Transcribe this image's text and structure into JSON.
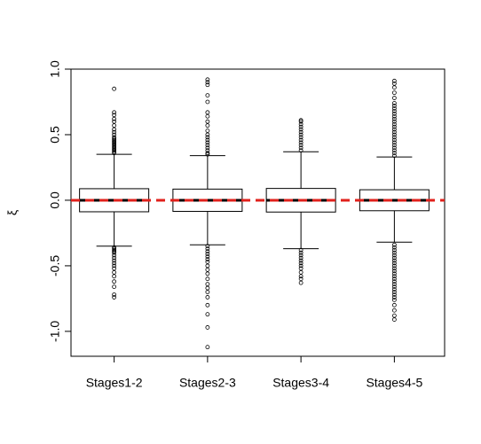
{
  "chart_data": {
    "type": "box",
    "y_label": "ξ",
    "categories": [
      "Stages1-2",
      "Stages2-3",
      "Stages3-4",
      "Stages4-5"
    ],
    "ylim": [
      -1.19,
      1.0
    ],
    "yticks": [
      {
        "value": -1.0,
        "label": "-1.0"
      },
      -0.5,
      {
        "value": 0.0,
        "label": "0.0"
      },
      0.5,
      {
        "value": 1.0,
        "label": "1.0"
      }
    ],
    "color": "#000000",
    "reference_line": {
      "value": 0,
      "color": "#e0201b"
    },
    "boxes": [
      {
        "whisker_low": -0.35,
        "q1": -0.088,
        "median": 0.0,
        "q3": 0.088,
        "whisker_high": 0.35,
        "outliers": [
          0.36,
          0.37,
          0.38,
          0.39,
          0.4,
          0.41,
          0.42,
          0.43,
          0.44,
          0.45,
          0.46,
          0.47,
          0.48,
          0.5,
          0.52,
          0.54,
          0.57,
          0.6,
          0.62,
          0.65,
          0.67,
          0.85,
          -0.36,
          -0.37,
          -0.38,
          -0.39,
          -0.4,
          -0.42,
          -0.44,
          -0.46,
          -0.48,
          -0.5,
          -0.52,
          -0.55,
          -0.58,
          -0.62,
          -0.66,
          -0.72,
          -0.74
        ]
      },
      {
        "whisker_low": -0.34,
        "q1": -0.085,
        "median": 0.0,
        "q3": 0.085,
        "whisker_high": 0.34,
        "outliers": [
          0.35,
          0.36,
          0.38,
          0.4,
          0.42,
          0.44,
          0.46,
          0.48,
          0.5,
          0.53,
          0.57,
          0.6,
          0.64,
          0.67,
          0.75,
          0.8,
          0.88,
          0.9,
          0.92,
          -0.35,
          -0.37,
          -0.39,
          -0.41,
          -0.43,
          -0.45,
          -0.47,
          -0.5,
          -0.53,
          -0.56,
          -0.6,
          -0.64,
          -0.67,
          -0.7,
          -0.74,
          -0.8,
          -0.87,
          -0.97,
          -1.12
        ]
      },
      {
        "whisker_low": -0.37,
        "q1": -0.09,
        "median": 0.0,
        "q3": 0.09,
        "whisker_high": 0.37,
        "outliers": [
          0.38,
          0.4,
          0.42,
          0.44,
          0.46,
          0.48,
          0.5,
          0.52,
          0.54,
          0.56,
          0.58,
          0.6,
          0.61,
          -0.38,
          -0.4,
          -0.42,
          -0.44,
          -0.46,
          -0.48,
          -0.5,
          -0.52,
          -0.55,
          -0.58,
          -0.6,
          -0.63
        ]
      },
      {
        "whisker_low": -0.32,
        "q1": -0.08,
        "median": 0.0,
        "q3": 0.08,
        "whisker_high": 0.33,
        "outliers": [
          0.34,
          0.36,
          0.38,
          0.4,
          0.42,
          0.44,
          0.46,
          0.48,
          0.5,
          0.52,
          0.54,
          0.56,
          0.58,
          0.6,
          0.62,
          0.64,
          0.66,
          0.68,
          0.7,
          0.72,
          0.74,
          0.78,
          0.82,
          0.86,
          0.89,
          0.91,
          -0.34,
          -0.36,
          -0.38,
          -0.4,
          -0.42,
          -0.44,
          -0.46,
          -0.48,
          -0.5,
          -0.52,
          -0.54,
          -0.56,
          -0.58,
          -0.6,
          -0.62,
          -0.64,
          -0.66,
          -0.68,
          -0.7,
          -0.72,
          -0.74,
          -0.76,
          -0.8,
          -0.84,
          -0.88,
          -0.91
        ]
      }
    ]
  }
}
